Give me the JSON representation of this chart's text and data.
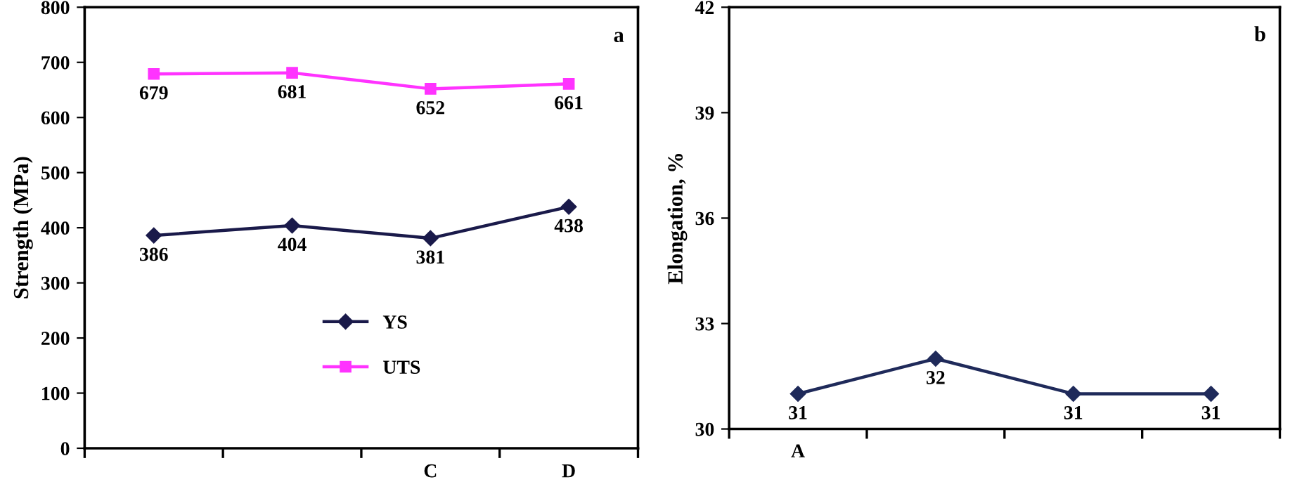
{
  "chart_data": [
    {
      "type": "line",
      "ylabel": "Strength (MPa)",
      "categories": [
        null,
        null,
        "C",
        "D"
      ],
      "series": [
        {
          "name": "YS",
          "color": "#1a1a4a",
          "marker": "diamond",
          "values": [
            386,
            404,
            381,
            438
          ]
        },
        {
          "name": "UTS",
          "color": "#ff33ff",
          "marker": "square",
          "values": [
            679,
            681,
            652,
            661
          ]
        }
      ],
      "ylim": [
        0,
        800
      ],
      "yticks": [
        0,
        100,
        200,
        300,
        400,
        500,
        600,
        700,
        800
      ],
      "data_labels": true,
      "legend": "bottom",
      "grid": false,
      "annotations": [
        "a"
      ]
    },
    {
      "type": "line",
      "ylabel": "Elongation, %",
      "categories": [
        "A",
        null,
        null,
        null
      ],
      "series": [
        {
          "color": "#1f2a5a",
          "marker": "diamond",
          "values": [
            31,
            32,
            31,
            31
          ]
        }
      ],
      "ylim": [
        30,
        42
      ],
      "yticks": [
        30,
        33,
        36,
        39,
        42
      ],
      "data_labels": true,
      "legend": false,
      "grid": false,
      "annotations": [
        "b"
      ]
    }
  ]
}
